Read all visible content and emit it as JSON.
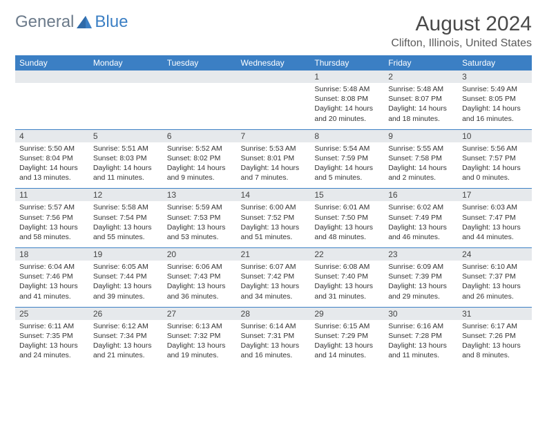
{
  "logo": {
    "word1": "General",
    "word2": "Blue"
  },
  "title": "August 2024",
  "location": "Clifton, Illinois, United States",
  "colors": {
    "header_bg": "#3b7fc4",
    "header_text": "#ffffff",
    "numrow_bg": "#e6e9ec",
    "rule": "#3b7fc4",
    "body_text": "#333333",
    "logo_gray": "#6b7a8a",
    "logo_blue": "#3b7fc4"
  },
  "day_names": [
    "Sunday",
    "Monday",
    "Tuesday",
    "Wednesday",
    "Thursday",
    "Friday",
    "Saturday"
  ],
  "weeks": [
    [
      null,
      null,
      null,
      null,
      {
        "n": "1",
        "sr": "5:48 AM",
        "ss": "8:08 PM",
        "dl": "14 hours and 20 minutes."
      },
      {
        "n": "2",
        "sr": "5:48 AM",
        "ss": "8:07 PM",
        "dl": "14 hours and 18 minutes."
      },
      {
        "n": "3",
        "sr": "5:49 AM",
        "ss": "8:05 PM",
        "dl": "14 hours and 16 minutes."
      }
    ],
    [
      {
        "n": "4",
        "sr": "5:50 AM",
        "ss": "8:04 PM",
        "dl": "14 hours and 13 minutes."
      },
      {
        "n": "5",
        "sr": "5:51 AM",
        "ss": "8:03 PM",
        "dl": "14 hours and 11 minutes."
      },
      {
        "n": "6",
        "sr": "5:52 AM",
        "ss": "8:02 PM",
        "dl": "14 hours and 9 minutes."
      },
      {
        "n": "7",
        "sr": "5:53 AM",
        "ss": "8:01 PM",
        "dl": "14 hours and 7 minutes."
      },
      {
        "n": "8",
        "sr": "5:54 AM",
        "ss": "7:59 PM",
        "dl": "14 hours and 5 minutes."
      },
      {
        "n": "9",
        "sr": "5:55 AM",
        "ss": "7:58 PM",
        "dl": "14 hours and 2 minutes."
      },
      {
        "n": "10",
        "sr": "5:56 AM",
        "ss": "7:57 PM",
        "dl": "14 hours and 0 minutes."
      }
    ],
    [
      {
        "n": "11",
        "sr": "5:57 AM",
        "ss": "7:56 PM",
        "dl": "13 hours and 58 minutes."
      },
      {
        "n": "12",
        "sr": "5:58 AM",
        "ss": "7:54 PM",
        "dl": "13 hours and 55 minutes."
      },
      {
        "n": "13",
        "sr": "5:59 AM",
        "ss": "7:53 PM",
        "dl": "13 hours and 53 minutes."
      },
      {
        "n": "14",
        "sr": "6:00 AM",
        "ss": "7:52 PM",
        "dl": "13 hours and 51 minutes."
      },
      {
        "n": "15",
        "sr": "6:01 AM",
        "ss": "7:50 PM",
        "dl": "13 hours and 48 minutes."
      },
      {
        "n": "16",
        "sr": "6:02 AM",
        "ss": "7:49 PM",
        "dl": "13 hours and 46 minutes."
      },
      {
        "n": "17",
        "sr": "6:03 AM",
        "ss": "7:47 PM",
        "dl": "13 hours and 44 minutes."
      }
    ],
    [
      {
        "n": "18",
        "sr": "6:04 AM",
        "ss": "7:46 PM",
        "dl": "13 hours and 41 minutes."
      },
      {
        "n": "19",
        "sr": "6:05 AM",
        "ss": "7:44 PM",
        "dl": "13 hours and 39 minutes."
      },
      {
        "n": "20",
        "sr": "6:06 AM",
        "ss": "7:43 PM",
        "dl": "13 hours and 36 minutes."
      },
      {
        "n": "21",
        "sr": "6:07 AM",
        "ss": "7:42 PM",
        "dl": "13 hours and 34 minutes."
      },
      {
        "n": "22",
        "sr": "6:08 AM",
        "ss": "7:40 PM",
        "dl": "13 hours and 31 minutes."
      },
      {
        "n": "23",
        "sr": "6:09 AM",
        "ss": "7:39 PM",
        "dl": "13 hours and 29 minutes."
      },
      {
        "n": "24",
        "sr": "6:10 AM",
        "ss": "7:37 PM",
        "dl": "13 hours and 26 minutes."
      }
    ],
    [
      {
        "n": "25",
        "sr": "6:11 AM",
        "ss": "7:35 PM",
        "dl": "13 hours and 24 minutes."
      },
      {
        "n": "26",
        "sr": "6:12 AM",
        "ss": "7:34 PM",
        "dl": "13 hours and 21 minutes."
      },
      {
        "n": "27",
        "sr": "6:13 AM",
        "ss": "7:32 PM",
        "dl": "13 hours and 19 minutes."
      },
      {
        "n": "28",
        "sr": "6:14 AM",
        "ss": "7:31 PM",
        "dl": "13 hours and 16 minutes."
      },
      {
        "n": "29",
        "sr": "6:15 AM",
        "ss": "7:29 PM",
        "dl": "13 hours and 14 minutes."
      },
      {
        "n": "30",
        "sr": "6:16 AM",
        "ss": "7:28 PM",
        "dl": "13 hours and 11 minutes."
      },
      {
        "n": "31",
        "sr": "6:17 AM",
        "ss": "7:26 PM",
        "dl": "13 hours and 8 minutes."
      }
    ]
  ],
  "labels": {
    "sunrise": "Sunrise:",
    "sunset": "Sunset:",
    "daylight": "Daylight:"
  }
}
